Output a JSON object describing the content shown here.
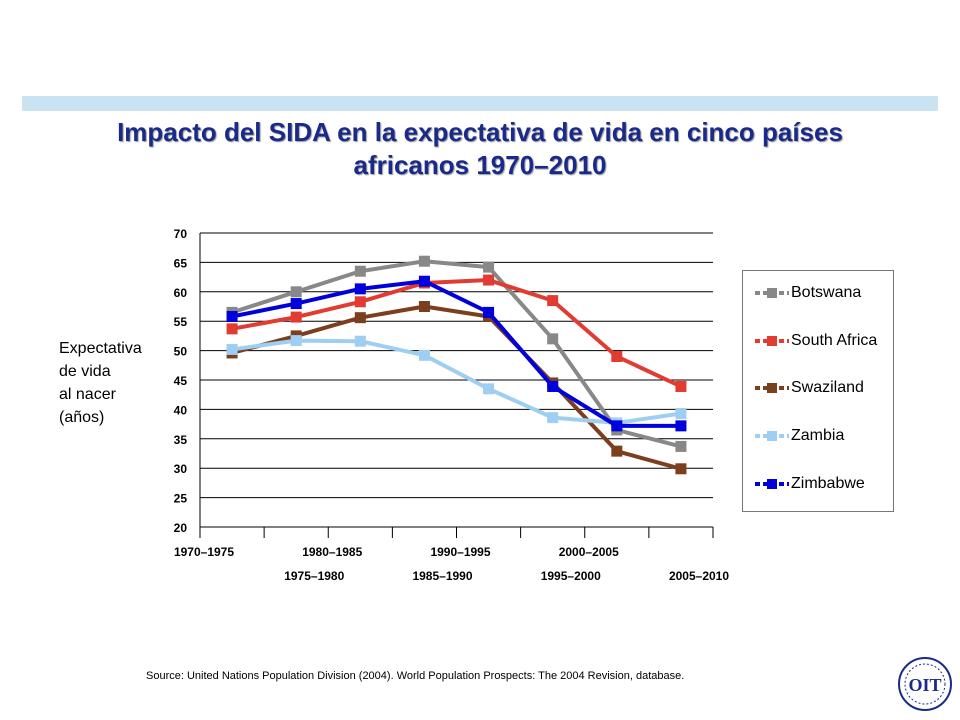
{
  "title_line1": "Impacto del SIDA en la expectativa de vida en cinco países",
  "title_line2": "africanos 1970–2010",
  "ylabel_lines": [
    "Expectativa",
    "de vida",
    "al nacer",
    "(años)"
  ],
  "source": "Source:  United Nations Population Division (2004).  World Population Prospects: The 2004 Revision, database.",
  "logo_text": "OIT",
  "chart_data": {
    "type": "line",
    "title": "Impacto del SIDA en la expectativa de vida en cinco países africanos 1970–2010",
    "xlabel": "",
    "ylabel": "Expectativa de vida al nacer (años)",
    "categories": [
      "1970–1975",
      "1975–1980",
      "1980–1985",
      "1985–1990",
      "1990–1995",
      "1995–2000",
      "2000–2005",
      "2005–2010"
    ],
    "ylim": [
      20,
      70
    ],
    "yticks": [
      20,
      25,
      30,
      35,
      40,
      45,
      50,
      55,
      60,
      65,
      70
    ],
    "grid": true,
    "legend": "right",
    "series": [
      {
        "name": "Botswana",
        "color": "#888888",
        "values": [
          56.5,
          60.0,
          63.5,
          65.2,
          64.2,
          52.0,
          36.5,
          33.7
        ]
      },
      {
        "name": "South Africa",
        "color": "#e03c31",
        "values": [
          53.7,
          55.7,
          58.3,
          61.5,
          62.0,
          58.5,
          49.0,
          43.9
        ]
      },
      {
        "name": "Swaziland",
        "color": "#7b3f1e",
        "values": [
          49.6,
          52.5,
          55.6,
          57.5,
          55.8,
          44.5,
          32.9,
          29.9
        ]
      },
      {
        "name": "Zambia",
        "color": "#9ecff2",
        "values": [
          50.2,
          51.7,
          51.6,
          49.2,
          43.5,
          38.6,
          37.7,
          39.3
        ]
      },
      {
        "name": "Zimbabwe",
        "color": "#0000dd",
        "values": [
          55.8,
          58.0,
          60.5,
          61.8,
          56.5,
          43.9,
          37.2,
          37.2
        ]
      }
    ]
  }
}
